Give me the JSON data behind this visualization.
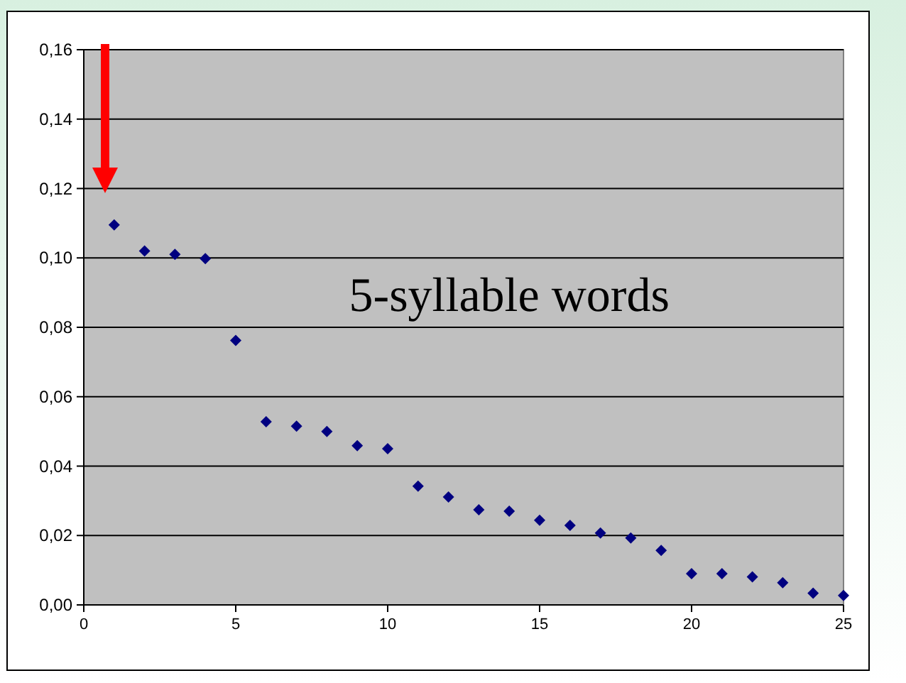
{
  "chart_data": {
    "type": "scatter",
    "annotations": [
      "5-syllable words"
    ],
    "x": [
      1,
      2,
      3,
      4,
      5,
      6,
      7,
      8,
      9,
      10,
      11,
      12,
      13,
      14,
      15,
      16,
      17,
      18,
      19,
      20,
      21,
      22,
      23,
      24,
      25
    ],
    "series": [
      {
        "color": "#000080",
        "values": [
          0.1095,
          0.102,
          0.101,
          0.0998,
          0.0762,
          0.0528,
          0.0515,
          0.05,
          0.0459,
          0.045,
          0.0342,
          0.0311,
          0.0274,
          0.027,
          0.0244,
          0.0229,
          0.0207,
          0.0193,
          0.0157,
          0.009,
          0.009,
          0.0081,
          0.0064,
          0.0034,
          0.0027
        ]
      }
    ],
    "xlim": [
      0,
      25
    ],
    "xticks": [
      0,
      5,
      10,
      15,
      20,
      25
    ],
    "ylim": [
      0,
      0.16
    ],
    "yticks": [
      {
        "value": 0,
        "label": "0,00"
      },
      {
        "value": 0.02,
        "label": "0,02"
      },
      {
        "value": 0.04,
        "label": "0,04"
      },
      {
        "value": 0.06,
        "label": "0,06"
      },
      {
        "value": 0.08,
        "label": "0,08"
      },
      {
        "value": 0.1,
        "label": "0,10"
      },
      {
        "value": 0.12,
        "label": "0,12"
      },
      {
        "value": 0.14,
        "label": "0,14"
      },
      {
        "value": 0.16,
        "label": "0,16"
      }
    ],
    "grid": "y",
    "marker": "diamond"
  }
}
